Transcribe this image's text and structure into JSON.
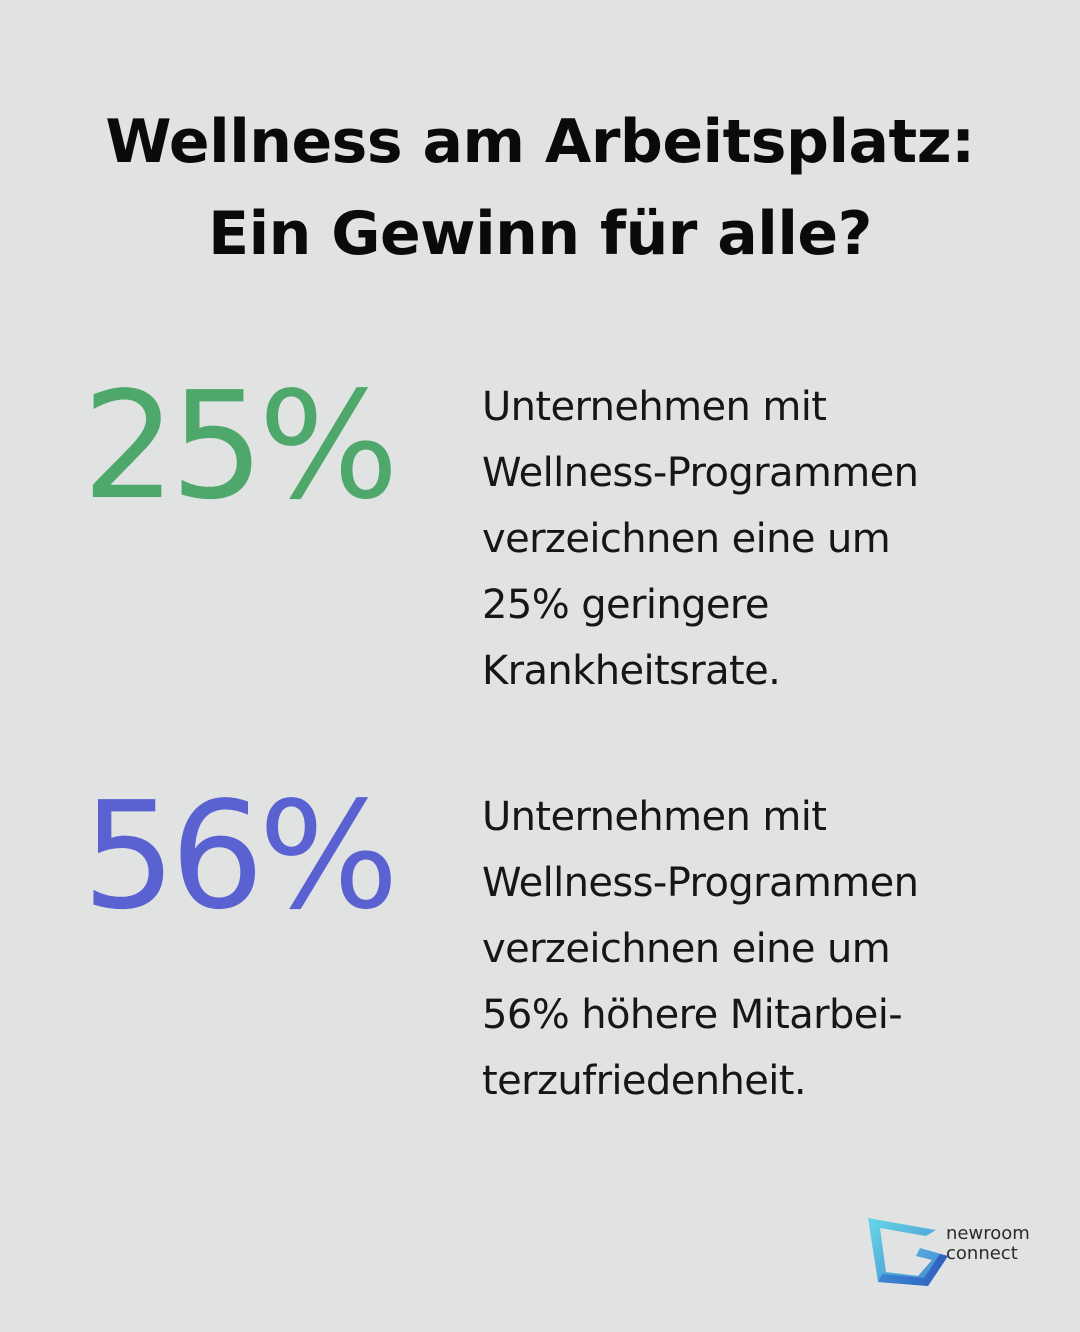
{
  "title": {
    "line1": "Wellness am Arbeitsplatz:",
    "line2": "Ein Gewinn für alle?"
  },
  "stats": [
    {
      "value": "25%",
      "color": "#4ea86b",
      "lines": [
        "Unternehmen mit",
        "Wellness-Programmen",
        "verzeichnen eine um",
        "25% geringere",
        "Krankheitsrate."
      ]
    },
    {
      "value": "56%",
      "color": "#5a62d1",
      "lines": [
        "Unternehmen mit",
        "Wellness-Programmen",
        "verzeichnen eine um",
        "56% höhere Mitarbei-",
        "terzufriedenheit."
      ]
    }
  ],
  "logo": {
    "line1": "newroom",
    "line2": "connect",
    "icon": "newroom-connect-logo-icon"
  }
}
